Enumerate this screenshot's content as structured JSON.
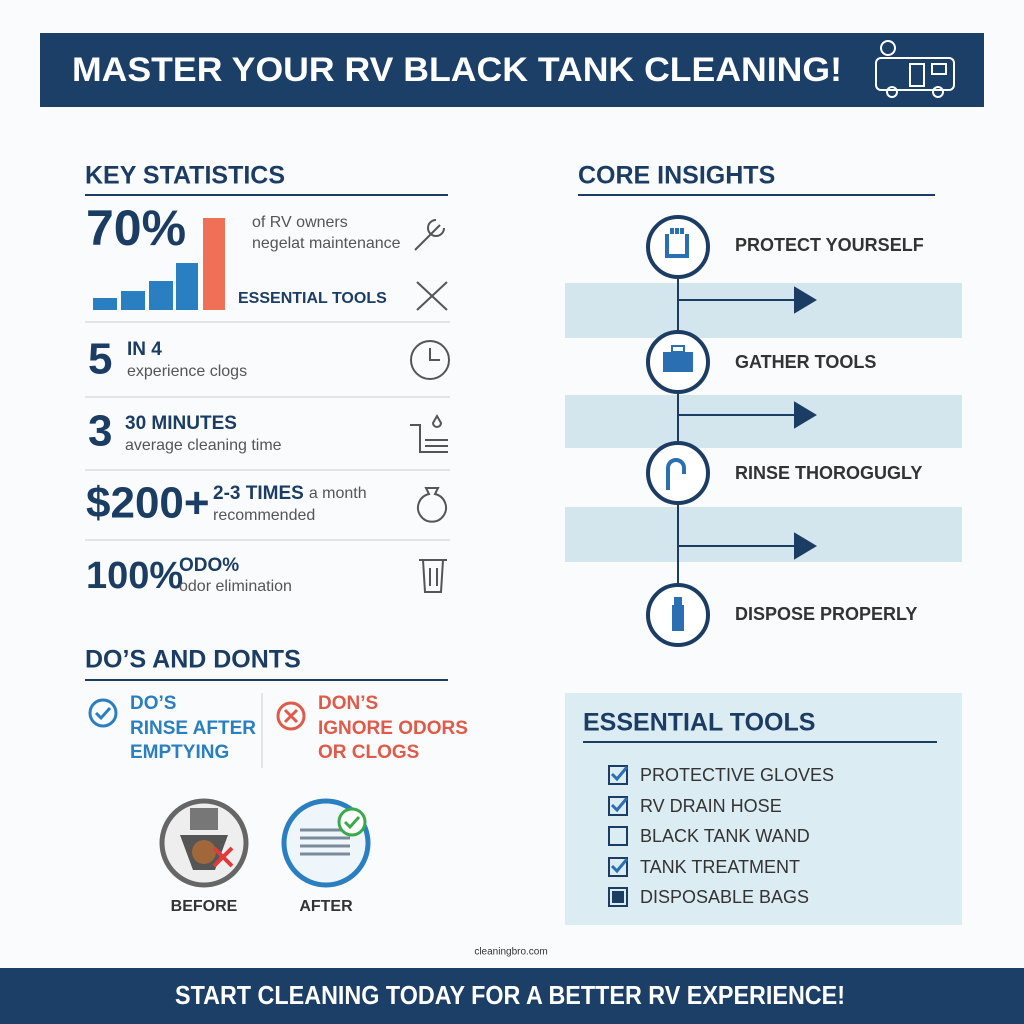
{
  "header": {
    "title": "MASTER YOUR RV BLACK TANK CLEANING!"
  },
  "key_statistics": {
    "title": "KEY STATISTICS",
    "items": [
      {
        "big": "70%",
        "lines": [
          "of RV owners",
          "negelat maintenance"
        ],
        "extra": "ESSENTIAL TOOLS"
      },
      {
        "big": "5",
        "head": "IN 4",
        "sub": "experience clogs"
      },
      {
        "big": "3",
        "head": "30 MINUTES",
        "sub": "average cleaning time"
      },
      {
        "big": "$200+",
        "head": "2-3 TIMES",
        "head_suffix": "a month",
        "sub": "recommended"
      },
      {
        "big": "100%",
        "head": "ODO%",
        "sub": "odor elimination"
      }
    ]
  },
  "dos_donts": {
    "title": "DO’S AND DONTS",
    "dos": {
      "heading": "DO’S",
      "lines": [
        "RINSE AFTER",
        "EMPTYING"
      ]
    },
    "donts": {
      "heading": "DON’S",
      "lines": [
        "IGNORE ODORS",
        "OR CLOGS"
      ]
    },
    "before": "BEFORE",
    "after": "AFTER"
  },
  "core_insights": {
    "title": "CORE INSIGHTS",
    "steps": [
      "PROTECT YOURSELF",
      "GATHER TOOLS",
      "RINSE THOROGUGLY",
      "DISPOSE PROPERLY"
    ]
  },
  "essential_tools": {
    "title": "ESSENTIAL TOOLS",
    "items": [
      "PROTECTIVE GLOVES",
      "RV DRAIN HOSE",
      "BLACK TANK WAND",
      "TANK TREATMENT",
      "DISPOSABLE BAGS"
    ]
  },
  "source": "cleaningbro.com",
  "footer": {
    "text": "START CLEANING TODAY FOR A BETTER RV EXPERIENCE!"
  }
}
